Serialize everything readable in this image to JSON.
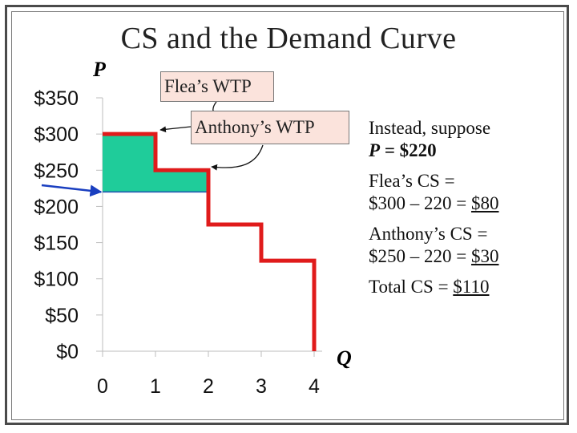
{
  "slide": {
    "title": "CS and the Demand Curve",
    "p_label": "P",
    "q_label": "Q"
  },
  "callouts": {
    "flea": "Flea’s WTP",
    "anthony": "Anthony’s WTP"
  },
  "side_text": {
    "line1a": "Instead, suppose",
    "line1b_prefix": "P",
    "line1b_rest": " = $220",
    "flea_cs_label": "Flea’s CS =",
    "flea_cs_calc": "$300 – 220 = ",
    "flea_cs_value": "$80",
    "anthony_cs_label": "Anthony’s CS =",
    "anthony_cs_calc": "$250 – 220 = ",
    "anthony_cs_value": "$30",
    "total_label": "Total CS = ",
    "total_value": "$110"
  },
  "colors": {
    "demand_line": "#e01b1b",
    "cs_fill": "#1fcc9a",
    "price_line": "#1f4fb0",
    "arrow": "#1a3fc0"
  },
  "chart_data": {
    "type": "line",
    "x_ticks": [
      "0",
      "1",
      "2",
      "3",
      "4"
    ],
    "y_ticks": [
      "$0",
      "$50",
      "$100",
      "$150",
      "$200",
      "$250",
      "$300",
      "$350"
    ],
    "xlim": [
      0,
      4
    ],
    "ylim": [
      0,
      350
    ],
    "demand_steps": {
      "x": [
        0,
        1,
        1,
        2,
        2,
        3,
        3,
        4,
        4
      ],
      "y": [
        300,
        300,
        250,
        250,
        175,
        175,
        125,
        125,
        0
      ]
    },
    "price": 220,
    "consumer_surplus": [
      {
        "x0": 0,
        "x1": 1,
        "y0": 220,
        "y1": 300
      },
      {
        "x0": 1,
        "x1": 2,
        "y0": 220,
        "y1": 250
      }
    ],
    "grid": false
  }
}
